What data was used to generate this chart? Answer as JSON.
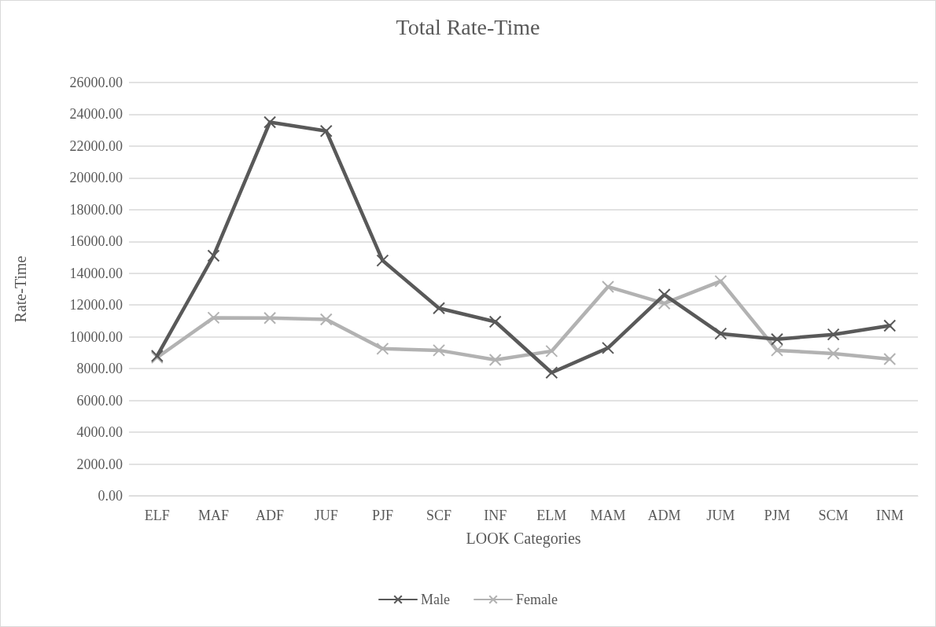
{
  "chart_data": {
    "type": "line",
    "title": "Total Rate-Time",
    "xlabel": "LOOK Categories",
    "ylabel": "Rate-Time",
    "categories": [
      "ELF",
      "MAF",
      "ADF",
      "JUF",
      "PJF",
      "SCF",
      "INF",
      "ELM",
      "MAM",
      "ADM",
      "JUM",
      "PJM",
      "SCM",
      "INM"
    ],
    "series": [
      {
        "name": "Male",
        "color": "#595959",
        "values": [
          8800,
          15100,
          23500,
          22950,
          14800,
          11800,
          10950,
          7750,
          9300,
          12650,
          10200,
          9850,
          10150,
          10700
        ]
      },
      {
        "name": "Female",
        "color": "#b2b2b2",
        "values": [
          8700,
          11200,
          11180,
          11100,
          9250,
          9150,
          8550,
          9100,
          13150,
          12100,
          13500,
          9150,
          8950,
          8600
        ]
      }
    ],
    "ylim": [
      0,
      26000
    ],
    "yticks": [
      {
        "value": 0,
        "label": "0.00"
      },
      {
        "value": 2000,
        "label": "2000.00"
      },
      {
        "value": 4000,
        "label": "4000.00"
      },
      {
        "value": 6000,
        "label": "6000.00"
      },
      {
        "value": 8000,
        "label": "8000.00"
      },
      {
        "value": 10000,
        "label": "10000.00"
      },
      {
        "value": 12000,
        "label": "12000.00"
      },
      {
        "value": 14000,
        "label": "14000.00"
      },
      {
        "value": 16000,
        "label": "16000.00"
      },
      {
        "value": 18000,
        "label": "18000.00"
      },
      {
        "value": 20000,
        "label": "20000.00"
      },
      {
        "value": 22000,
        "label": "22000.00"
      },
      {
        "value": 24000,
        "label": "24000.00"
      },
      {
        "value": 26000,
        "label": "26000.00"
      }
    ],
    "grid": "y",
    "legend": "bottom",
    "marker": "cross",
    "line_style": "solid"
  }
}
